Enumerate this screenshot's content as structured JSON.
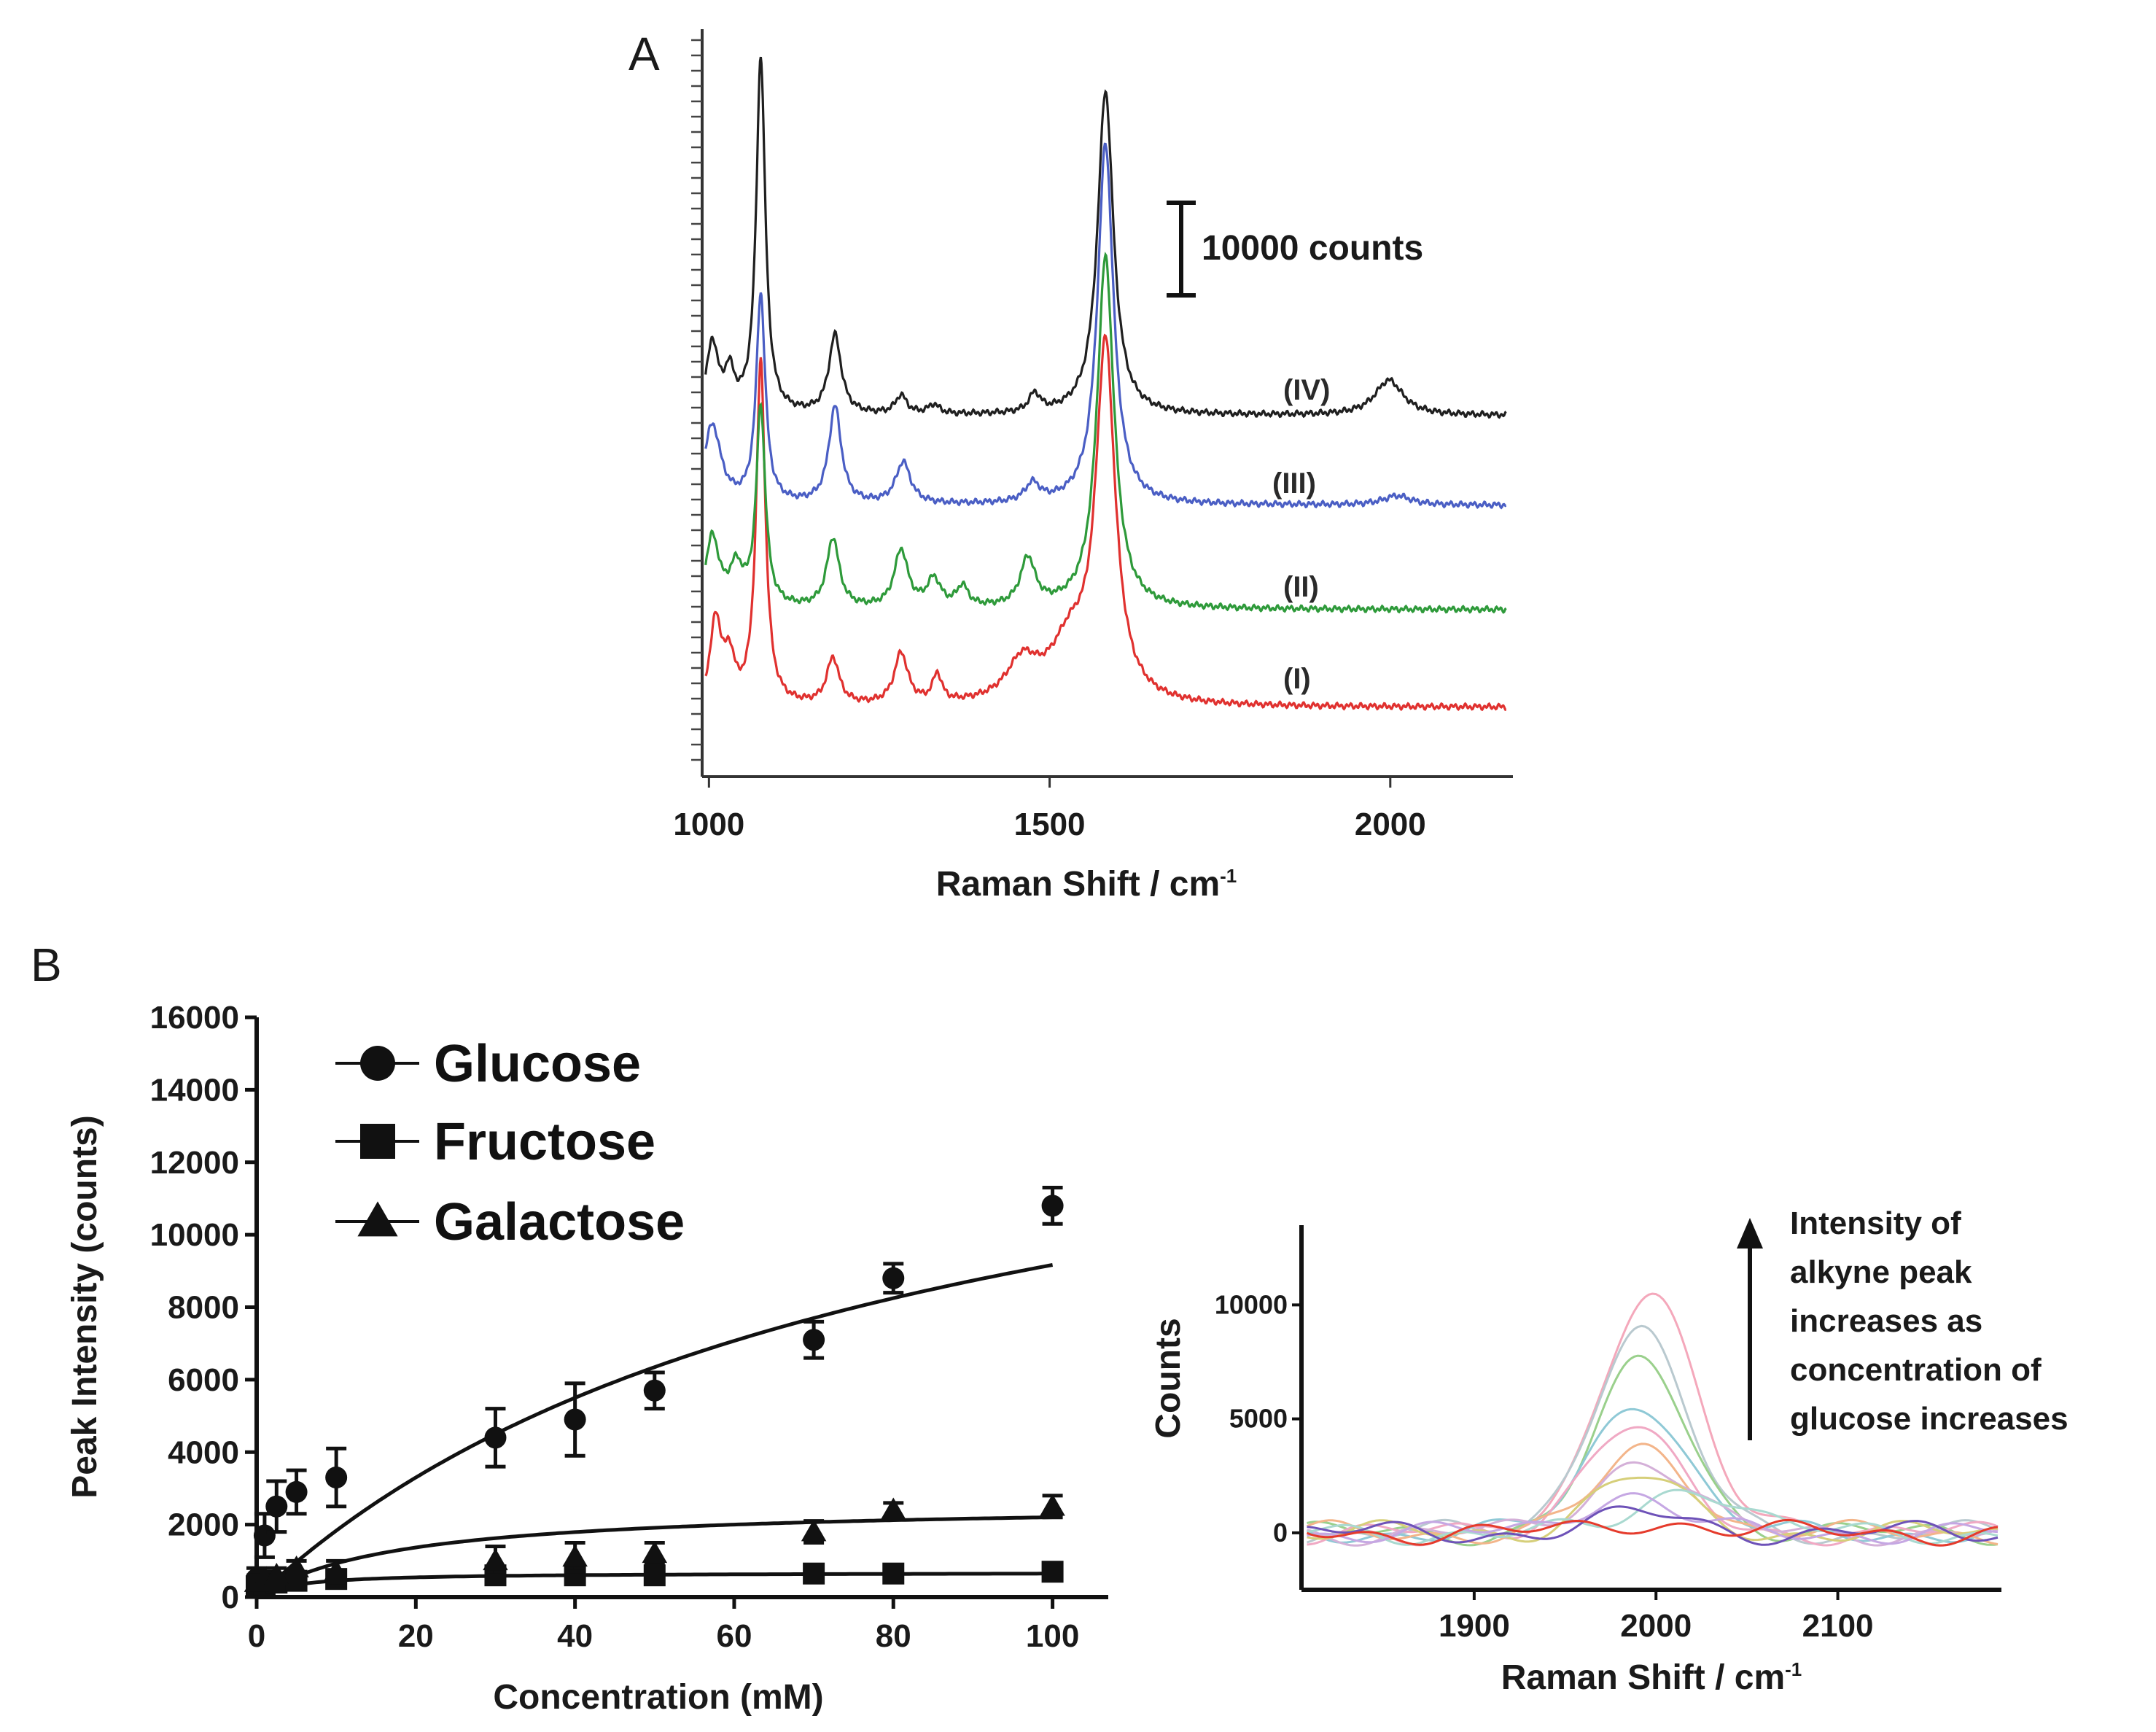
{
  "chart_data": [
    {
      "panel": "A",
      "type": "line",
      "xlabel": "Raman Shift / cm",
      "xlabel_sup": "-1",
      "xlim": [
        990,
        2180
      ],
      "xticks": [
        1000,
        1500,
        2000
      ],
      "scale_bar": {
        "label": "10000 counts",
        "value": 10000
      },
      "series": [
        {
          "name": "(I)",
          "color": "#e0312f",
          "baseline": 0,
          "end": 0,
          "peaks": [
            [
              1010,
              9000,
              10
            ],
            [
              1030,
              4500,
              9
            ],
            [
              1076,
              37000,
              8
            ],
            [
              1182,
              5000,
              11
            ],
            [
              1282,
              5500,
              12
            ],
            [
              1335,
              3000,
              8
            ],
            [
              1460,
              4200,
              28
            ],
            [
              1530,
              6000,
              35
            ],
            [
              1582,
              38000,
              17
            ]
          ]
        },
        {
          "name": "(II)",
          "color": "#2e9a3a",
          "baseline": 0,
          "end": 0,
          "peaks": [
            [
              1005,
              7500,
              12
            ],
            [
              1040,
              4000,
              12
            ],
            [
              1076,
              21500,
              8
            ],
            [
              1182,
              7500,
              11
            ],
            [
              1282,
              6200,
              12
            ],
            [
              1330,
              3000,
              12
            ],
            [
              1372,
              2200,
              10
            ],
            [
              1468,
              5200,
              13
            ],
            [
              1582,
              38000,
              15
            ]
          ]
        },
        {
          "name": "(III)",
          "color": "#4a5ec4",
          "baseline": 0,
          "end": 0,
          "peaks": [
            [
              1005,
              8500,
              15
            ],
            [
              1076,
              22500,
              8
            ],
            [
              1185,
              10500,
              11
            ],
            [
              1285,
              4500,
              13
            ],
            [
              1475,
              2000,
              13
            ],
            [
              1582,
              39000,
              14
            ],
            [
              2010,
              1000,
              25
            ]
          ]
        },
        {
          "name": "(IV)",
          "color": "#1f1f1f",
          "baseline": 0,
          "end": 0,
          "peaks": [
            [
              1005,
              7500,
              10
            ],
            [
              1030,
              4000,
              9
            ],
            [
              1076,
              38500,
              8
            ],
            [
              1185,
              8500,
              11
            ],
            [
              1282,
              2000,
              10
            ],
            [
              1330,
              1000,
              10
            ],
            [
              1478,
              2000,
              10
            ],
            [
              1582,
              35000,
              14
            ],
            [
              1998,
              3800,
              25
            ]
          ]
        }
      ]
    },
    {
      "panel": "B",
      "type": "scatter",
      "xlabel": "Concentration (mM)",
      "ylabel": "Peak Intensity (counts)",
      "xlim": [
        0,
        107
      ],
      "ylim": [
        0,
        16000
      ],
      "xticks": [
        0,
        20,
        40,
        60,
        80,
        100
      ],
      "yticks": [
        0,
        2000,
        4000,
        6000,
        8000,
        10000,
        12000,
        14000,
        16000
      ],
      "x": [
        0,
        1,
        2.5,
        5,
        10,
        30,
        40,
        50,
        70,
        80,
        100
      ],
      "series": [
        {
          "name": "Glucose",
          "marker": "circle",
          "values": [
            500,
            1700,
            2500,
            2900,
            3300,
            4400,
            4900,
            5700,
            7100,
            8800,
            10800
          ],
          "errors": [
            300,
            600,
            700,
            600,
            800,
            800,
            1000,
            500,
            500,
            400,
            500
          ],
          "fit": {
            "vmax": 16500,
            "km": 80
          }
        },
        {
          "name": "Fructose",
          "marker": "square",
          "values": [
            300,
            350,
            400,
            450,
            500,
            600,
            600,
            600,
            650,
            650,
            700
          ],
          "errors": [
            100,
            100,
            100,
            100,
            150,
            150,
            150,
            150,
            150,
            100,
            150
          ],
          "fit": {
            "vmax": 680,
            "km": 5
          }
        },
        {
          "name": "Galactose",
          "marker": "triangle",
          "values": [
            400,
            500,
            600,
            800,
            700,
            1000,
            1100,
            1200,
            1800,
            2400,
            2500
          ],
          "errors": [
            200,
            200,
            200,
            200,
            300,
            400,
            400,
            300,
            300,
            200,
            300
          ],
          "fit": {
            "vmax": 2600,
            "km": 18
          }
        }
      ]
    },
    {
      "panel": "B-inset",
      "type": "line",
      "xlabel": "Raman Shift / cm",
      "xlabel_sup": "-1",
      "ylabel": "Counts",
      "xlim": [
        1805,
        2190
      ],
      "ylim": [
        -2500,
        13500
      ],
      "xticks": [
        1900,
        2000,
        2100
      ],
      "yticks": [
        0,
        5000,
        10000
      ],
      "annotation": [
        "Intensity of",
        "alkyne peak",
        "increases as",
        "concentration of",
        "glucose increases"
      ],
      "series": [
        {
          "color": "#f4a8bb",
          "peak": 10800,
          "center": 1997
        },
        {
          "color": "#b9c9cf",
          "peak": 8900,
          "center": 1990
        },
        {
          "color": "#9ad08c",
          "peak": 7400,
          "center": 1993
        },
        {
          "color": "#8fc9d6",
          "peak": 5900,
          "center": 1990
        },
        {
          "color": "#f0a9c4",
          "peak": 4700,
          "center": 1985
        },
        {
          "color": "#f3b58a",
          "peak": 3600,
          "center": 1995
        },
        {
          "color": "#d4b0d8",
          "peak": 3300,
          "center": 1992
        },
        {
          "color": "#d6cf7a",
          "peak": 2400,
          "center": 1990
        },
        {
          "color": "#a9d9d0",
          "peak": 2100,
          "center": 2020
        },
        {
          "color": "#c5a7e3",
          "peak": 1700,
          "center": 1982
        },
        {
          "color": "#6e52b8",
          "peak": 800,
          "center": 1995
        },
        {
          "color": "#e53b2c",
          "peak": 500,
          "center": 2000
        }
      ]
    }
  ],
  "labels": {
    "panel_a": "A",
    "panel_b": "B"
  }
}
